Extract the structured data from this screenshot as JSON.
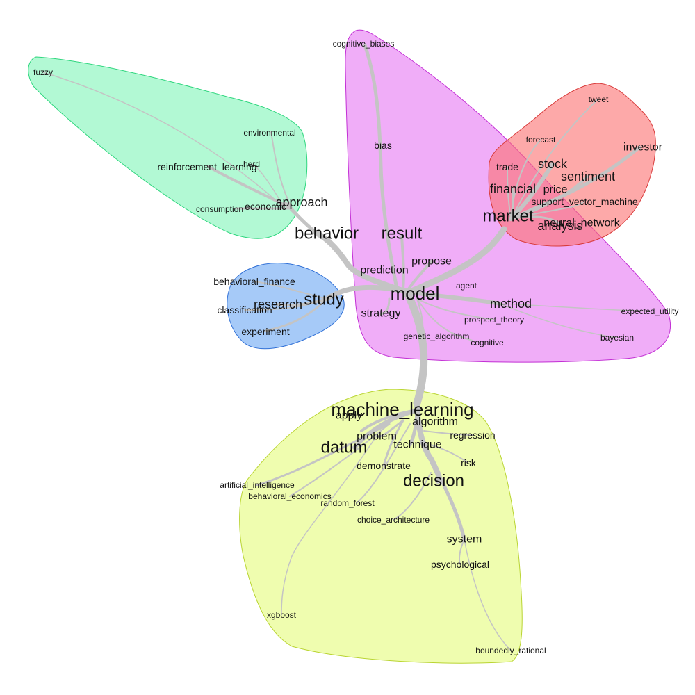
{
  "colors": {
    "edge": "#c4c4c4",
    "green_fill": "#7ff5b8",
    "green_stroke": "#2fd67e",
    "magenta_fill": "#e46af2",
    "magenta_stroke": "#c22ed4",
    "red_fill": "#fb6f6f",
    "red_stroke": "#d83a3a",
    "blue_fill": "#6aa7f4",
    "blue_stroke": "#2f6fd6",
    "yellow_fill": "#e4fb7a",
    "yellow_stroke": "#b9d431"
  },
  "clusters": [
    {
      "id": "green",
      "name": "cluster-behavior"
    },
    {
      "id": "magenta",
      "name": "cluster-model"
    },
    {
      "id": "red",
      "name": "cluster-market"
    },
    {
      "id": "blue",
      "name": "cluster-study"
    },
    {
      "id": "yellow",
      "name": "cluster-machine-learning"
    }
  ],
  "nodes": {
    "fuzzy": "fuzzy",
    "environmental": "environmental",
    "herd": "herd",
    "reinforcement_learning": "reinforcement_learning",
    "consumption": "consumption",
    "economic": "economic",
    "approach": "approach",
    "behavior": "behavior",
    "cognitive_biases": "cognitive_biases",
    "bias": "bias",
    "result": "result",
    "propose": "propose",
    "prediction": "prediction",
    "model": "model",
    "agent": "agent",
    "method": "method",
    "strategy": "strategy",
    "prospect_theory": "prospect_theory",
    "genetic_algorithm": "genetic_algorithm",
    "cognitive": "cognitive",
    "expected_utility": "expected_utility",
    "bayesian": "bayesian",
    "tweet": "tweet",
    "forecast": "forecast",
    "investor": "investor",
    "trade": "trade",
    "stock": "stock",
    "sentiment": "sentiment",
    "financial": "financial",
    "price": "price",
    "support_vector_machine": "support_vector_machine",
    "market": "market",
    "neural_network": "neural_network",
    "analysis": "analysis",
    "behavioral_finance": "behavioral_finance",
    "research": "research",
    "study": "study",
    "classification": "classification",
    "experiment": "experiment",
    "machine_learning": "machine_learning",
    "apply": "apply",
    "algorithm": "algorithm",
    "problem": "problem",
    "technique": "technique",
    "regression": "regression",
    "datum": "datum",
    "demonstrate": "demonstrate",
    "risk": "risk",
    "decision": "decision",
    "artificial_intelligence": "artificial_intelligence",
    "behavioral_economics": "behavioral_economics",
    "random_forest": "random_forest",
    "choice_architecture": "choice_architecture",
    "system": "system",
    "psychological": "psychological",
    "xgboost": "xgboost",
    "boundedly_rational": "boundedly_rational"
  }
}
